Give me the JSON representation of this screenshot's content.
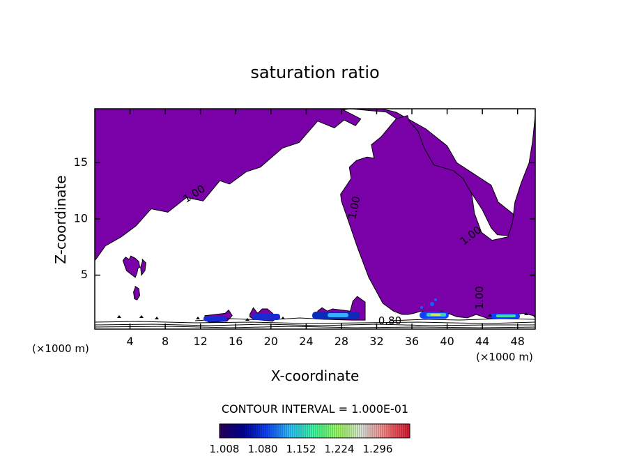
{
  "chart_data": {
    "type": "contour",
    "title": "saturation ratio",
    "xlabel": "X-coordinate",
    "ylabel": "Z-coordinate",
    "x_unit_left": "(×1000 m)",
    "x_unit_right": "(×1000 m)",
    "xlim": [
      0,
      50
    ],
    "ylim": [
      0.2,
      19.8
    ],
    "x_ticks": [
      4,
      8,
      12,
      16,
      20,
      24,
      28,
      32,
      36,
      40,
      44,
      48
    ],
    "y_ticks": [
      5,
      10,
      15
    ],
    "fill_color": "#7a00a8",
    "contour_labels": [
      {
        "text": "1.00",
        "x": 11.3,
        "z": 12.2,
        "angle": -32
      },
      {
        "text": "1.00",
        "x": 29.5,
        "z": 11.0,
        "angle": -78
      },
      {
        "text": "1.00",
        "x": 42.7,
        "z": 8.5,
        "angle": -38
      },
      {
        "text": "1.00",
        "x": 43.7,
        "z": 3.0,
        "angle": -90
      },
      {
        "text": "0.80",
        "x": 33.5,
        "z": 0.9,
        "angle": 0
      }
    ],
    "supersaturated_regions": [
      {
        "x": [
          0,
          20.5,
          28,
          32.5,
          34.2,
          37.6,
          40,
          41.1,
          45,
          45.8,
          48.2,
          50,
          50,
          45.7,
          45,
          44,
          42.2,
          36,
          35.3,
          35.1,
          33.1,
          29,
          28.2,
          30.2,
          29.6,
          28.3,
          27.2,
          25.3,
          23.2,
          21.3,
          18.8,
          17.2,
          15.3,
          14.2,
          12.3,
          10.4,
          8.3,
          6.4,
          4.7,
          3,
          1.2,
          0.3,
          0,
          0
        ],
        "z": [
          19.8,
          19.8,
          19.8,
          19.8,
          19.5,
          18,
          16.5,
          15,
          13,
          11.5,
          10,
          9,
          8.3,
          8.6,
          9.2,
          10.8,
          13,
          15,
          16.5,
          18.5,
          19.5,
          19.8,
          19.7,
          18.9,
          18.3,
          18.8,
          18.1,
          18.7,
          16.8,
          16.3,
          14.6,
          14.2,
          13.1,
          13.4,
          11.6,
          11.9,
          10.6,
          10.9,
          9.4,
          8.4,
          7.6,
          6.6,
          6.3,
          19.8
        ]
      },
      {
        "x": [
          27.9,
          28.6,
          29.1,
          28.9,
          29.7,
          30.9,
          31.7,
          31.4,
          32.5,
          34.2,
          35.5,
          35.7,
          36.7,
          37.4,
          38.5,
          40.7,
          41.8,
          42.8,
          43.1,
          43.9,
          45.1,
          46.9,
          47.4,
          47.7,
          48.4,
          49.3,
          49.7,
          50,
          50,
          49.8,
          48.7,
          46.6,
          44.8,
          43.3,
          42.3,
          41.1,
          40.1,
          39.3,
          38.7,
          38.4,
          37.8,
          37.1,
          36.2,
          35.6,
          34.9,
          33.9,
          32.7,
          31.1,
          29.8,
          28.8,
          28
        ],
        "z": [
          12.2,
          13,
          13.6,
          14.6,
          15.2,
          15.5,
          15.4,
          16.6,
          17.3,
          18.9,
          19.2,
          18.7,
          17.8,
          16.3,
          14.8,
          14.3,
          13.6,
          12.2,
          10.5,
          8.8,
          8.1,
          8.4,
          9.6,
          11.5,
          13.2,
          15,
          16.9,
          19.2,
          1.2,
          1.4,
          1.6,
          1.4,
          1.1,
          1.5,
          1.2,
          1.3,
          1.6,
          1.8,
          1.4,
          1.4,
          1.6,
          1.8,
          1.6,
          1.5,
          1.5,
          1.8,
          2.5,
          4.8,
          7.5,
          9.8,
          11.6
        ]
      },
      {
        "x": [
          3.2,
          3.5,
          3.9,
          4.1,
          4.6,
          5,
          5.1,
          4.9,
          4.8,
          4.6,
          3.6
        ],
        "z": [
          6.3,
          6.6,
          6.4,
          6.7,
          6.5,
          6.2,
          5.7,
          5.6,
          5.2,
          4.8,
          5.4
        ]
      },
      {
        "x": [
          5.4,
          5.8,
          5.7,
          5.3,
          5.2,
          5.4
        ],
        "z": [
          6.4,
          6.1,
          5.4,
          5.0,
          5.7,
          6.2
        ]
      },
      {
        "x": [
          4.6,
          5.0,
          5.1,
          4.8,
          4.5,
          4.4,
          4.6
        ],
        "z": [
          4.0,
          3.8,
          3.2,
          2.8,
          2.9,
          3.5,
          3.9
        ]
      },
      {
        "x": [
          12.5,
          14.8,
          15.2,
          15.6,
          15.0,
          13.0,
          12.5
        ],
        "z": [
          1.4,
          1.6,
          1.9,
          1.4,
          0.9,
          0.8,
          1.0
        ]
      },
      {
        "x": [
          17.6,
          18.0,
          18.5,
          19.0,
          19.6,
          20.2,
          20.5,
          20.2,
          19.0,
          18.0,
          17.6
        ],
        "z": [
          1.5,
          2.1,
          1.6,
          2.0,
          2.0,
          1.6,
          1.1,
          0.9,
          1.0,
          1.1,
          1.3
        ]
      },
      {
        "x": [
          25.3,
          25.8,
          26.4,
          27.0,
          28.0,
          29.0,
          29.3,
          29.8,
          30.7,
          30.7,
          29.2,
          25.1,
          25.3
        ],
        "z": [
          1.8,
          2.1,
          1.8,
          2.0,
          1.9,
          1.8,
          2.7,
          3.1,
          2.6,
          1.0,
          1.0,
          1.1,
          1.5
        ]
      }
    ],
    "colorbar": {
      "title": "CONTOUR INTERVAL = 1.000E-01",
      "tick_labels": [
        "1.008",
        "1.080",
        "1.152",
        "1.224",
        "1.296"
      ],
      "colors": [
        "#2a0060",
        "#00009a",
        "#1048ff",
        "#30c8ff",
        "#40ffa0",
        "#a0ff60",
        "#e0e8e0",
        "#ff8080",
        "#d81830"
      ]
    }
  }
}
